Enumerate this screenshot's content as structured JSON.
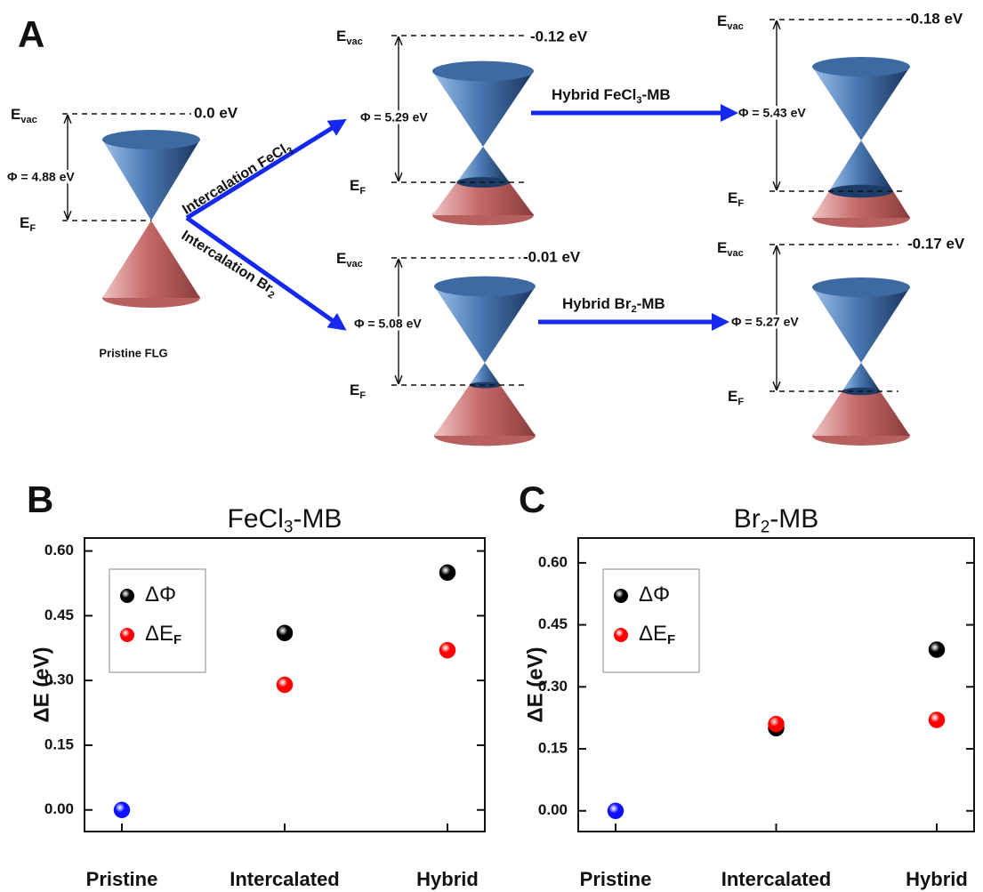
{
  "diagram": {
    "panel_label": "A",
    "pristine": {
      "evac": {
        "main": "E",
        "sub": "vac"
      },
      "evac_value": "0.0 eV",
      "phi": "Φ = 4.88 eV",
      "ef": {
        "main": "E",
        "sub": "F"
      },
      "caption": "Pristine FLG"
    },
    "intercalated_fecl3": {
      "evac": {
        "main": "E",
        "sub": "vac"
      },
      "evac_value": "-0.12 eV",
      "phi": "Φ = 5.29 eV",
      "ef": {
        "main": "E",
        "sub": "F"
      }
    },
    "hybrid_fecl3": {
      "evac": {
        "main": "E",
        "sub": "vac"
      },
      "evac_value": "-0.18 eV",
      "phi": "Φ = 5.43 eV",
      "ef": {
        "main": "E",
        "sub": "F"
      }
    },
    "intercalated_br2": {
      "evac": {
        "main": "E",
        "sub": "vac"
      },
      "evac_value": "-0.01 eV",
      "phi": "Φ = 5.08 eV",
      "ef": {
        "main": "E",
        "sub": "F"
      }
    },
    "hybrid_br2": {
      "evac": {
        "main": "E",
        "sub": "vac"
      },
      "evac_value": "-0.17 eV",
      "phi": "Φ = 5.27 eV",
      "ef": {
        "main": "E",
        "sub": "F"
      }
    },
    "arrows": [
      {
        "main": "Intercalation FeCl",
        "sub": "3"
      },
      {
        "main": "Intercalation Br",
        "sub": "2"
      },
      {
        "main": "Hybrid FeCl",
        "sub": "3",
        "tail": "-MB"
      },
      {
        "main": "Hybrid Br",
        "sub": "2",
        "tail": "-MB"
      }
    ]
  },
  "chart_data": [
    {
      "type": "scatter",
      "panel_label": "B",
      "title": {
        "main": "FeCl",
        "sub": "3",
        "tail": "-MB"
      },
      "y_label": "ΔE (eV)",
      "categories": [
        "Pristine",
        "Intercalated",
        "Hybrid"
      ],
      "series": [
        {
          "name": "ΔΦ",
          "color": "#000000",
          "values": [
            null,
            0.41,
            0.55
          ]
        },
        {
          "name": "ΔE",
          "name_sub": "F",
          "color": "#ff0000",
          "values": [
            null,
            0.29,
            0.37
          ]
        },
        {
          "color": "#1010ff",
          "values": [
            0,
            null,
            null
          ]
        }
      ],
      "ylim": [
        -0.05,
        0.63
      ],
      "yticks": [
        {
          "value": 0,
          "label": "0.00"
        },
        0.15,
        {
          "value": 0.3,
          "label": "0.30"
        },
        0.45,
        {
          "value": 0.6,
          "label": "0.60"
        }
      ],
      "legend": "upper left"
    },
    {
      "type": "scatter",
      "panel_label": "C",
      "title": {
        "main": "Br",
        "sub": "2",
        "tail": "-MB"
      },
      "y_label": "ΔE (eV)",
      "categories": [
        "Pristine",
        "Intercalated",
        "Hybrid"
      ],
      "series": [
        {
          "name": "ΔΦ",
          "color": "#000000",
          "values": [
            null,
            0.2,
            0.39
          ]
        },
        {
          "name": "ΔE",
          "name_sub": "F",
          "color": "#ff0000",
          "values": [
            null,
            0.21,
            0.22
          ]
        },
        {
          "color": "#1010ff",
          "values": [
            0,
            null,
            null
          ]
        }
      ],
      "ylim": [
        -0.05,
        0.66
      ],
      "yticks": [
        {
          "value": 0,
          "label": "0.00"
        },
        0.15,
        {
          "value": 0.3,
          "label": "0.30"
        },
        0.45,
        {
          "value": 0.6,
          "label": "0.60"
        }
      ],
      "legend": "upper left"
    }
  ]
}
